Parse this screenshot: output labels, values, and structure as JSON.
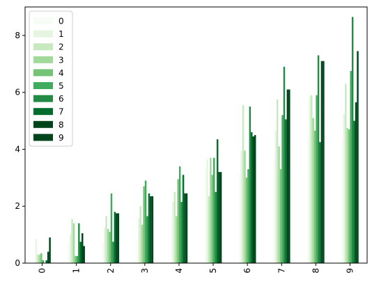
{
  "chart_data": {
    "type": "bar",
    "categories": [
      "0",
      "1",
      "2",
      "3",
      "4",
      "5",
      "6",
      "7",
      "8",
      "9"
    ],
    "ylim": [
      0,
      9.0
    ],
    "yticks": [
      0,
      2,
      4,
      6,
      8
    ],
    "grid": false,
    "legend_position": "top-left",
    "series": [
      {
        "name": "0",
        "color": "#f7fcf5",
        "values": [
          0.1,
          0.7,
          0.7,
          0.85,
          1.6,
          3.35,
          3.2,
          3.6,
          4.35,
          4.4
        ]
      },
      {
        "name": "1",
        "color": "#e5f5e0",
        "values": [
          0.85,
          1.0,
          1.25,
          1.55,
          2.15,
          3.65,
          3.95,
          4.65,
          5.85,
          5.25
        ]
      },
      {
        "name": "2",
        "color": "#c7e9c0",
        "values": [
          0.3,
          1.55,
          1.65,
          2.0,
          2.5,
          2.35,
          5.55,
          5.75,
          5.9,
          6.3
        ]
      },
      {
        "name": "3",
        "color": "#a1d99b",
        "values": [
          0.3,
          1.4,
          1.2,
          1.35,
          1.65,
          3.7,
          3.95,
          4.1,
          5.1,
          4.75
        ]
      },
      {
        "name": "4",
        "color": "#74c476",
        "values": [
          0.35,
          0.25,
          1.1,
          2.7,
          2.95,
          3.1,
          3.0,
          3.3,
          4.65,
          4.7
        ]
      },
      {
        "name": "5",
        "color": "#41ab5d",
        "values": [
          0.1,
          0.25,
          2.45,
          2.9,
          3.4,
          3.7,
          3.3,
          5.2,
          5.9,
          6.75
        ]
      },
      {
        "name": "6",
        "color": "#238b45",
        "values": [
          0.0,
          1.4,
          0.75,
          1.65,
          2.15,
          2.5,
          5.5,
          6.9,
          7.3,
          8.65
        ]
      },
      {
        "name": "7",
        "color": "#006d2c",
        "values": [
          0.1,
          0.75,
          1.8,
          2.45,
          3.1,
          4.35,
          4.6,
          5.05,
          4.25,
          5.0
        ]
      },
      {
        "name": "8",
        "color": "#00441b",
        "values": [
          0.4,
          1.05,
          1.75,
          2.35,
          2.45,
          3.2,
          4.45,
          6.1,
          7.1,
          5.65
        ]
      },
      {
        "name": "9",
        "color": "#00441b",
        "values": [
          0.9,
          0.6,
          1.75,
          2.35,
          2.45,
          3.2,
          4.5,
          6.1,
          7.1,
          7.45
        ]
      }
    ]
  }
}
